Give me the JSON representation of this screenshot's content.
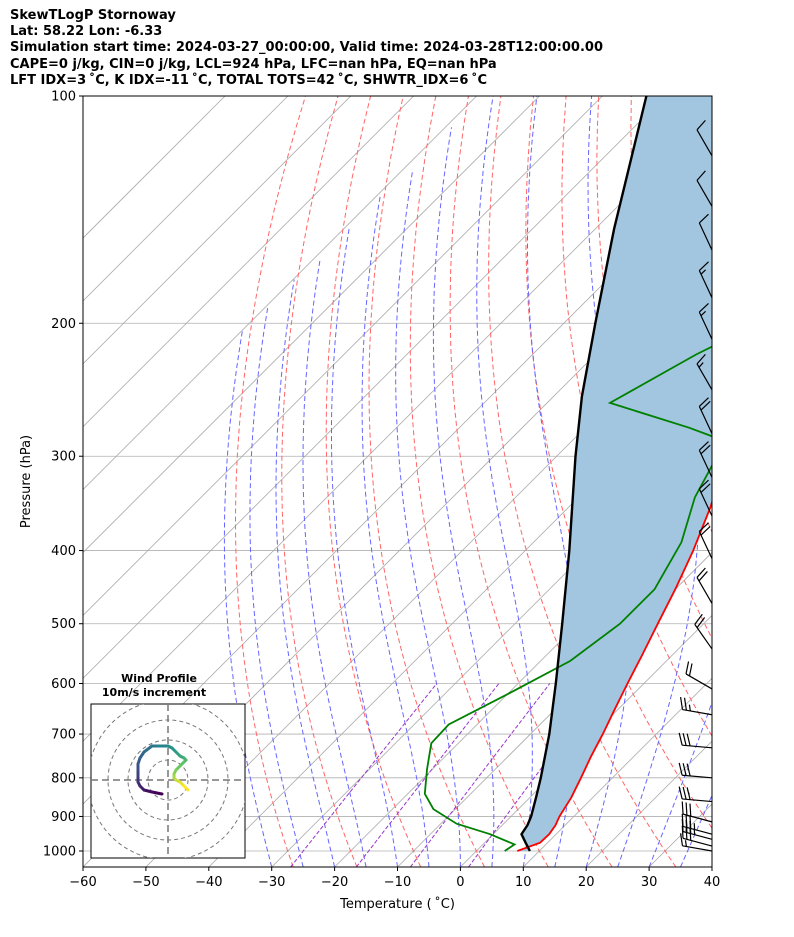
{
  "header": {
    "title": "SkewTLogP Stornoway",
    "location": "Lat: 58.22   Lon: -6.33",
    "times": "Simulation start time: 2024-03-27_00:00:00, Valid time: 2024-03-28T12:00:00.00",
    "params": "CAPE=0 j/kg, CIN=0 j/kg, LCL=924 hPa, LFC=nan hPa, EQ=nan hPa",
    "indices": "LFT IDX=3 ˚C, K IDX=-11 ˚C, TOTAL TOTS=42 ˚C, SHWTR_IDX=6 ˚C"
  },
  "chart_data": {
    "type": "skewt-logp",
    "xlabel": "Temperature ( ˚C)",
    "ylabel": "Pressure (hPa)",
    "xlim": [
      -60,
      40
    ],
    "ylim": [
      1050,
      100
    ],
    "y_scale": "log",
    "x_ticks": [
      "−60",
      "−50",
      "−40",
      "−30",
      "−20",
      "−10",
      "0",
      "10",
      "20",
      "30",
      "40"
    ],
    "y_ticks": [
      "100",
      "200",
      "300",
      "400",
      "500",
      "600",
      "700",
      "800",
      "900",
      "1000"
    ],
    "grid": true,
    "colors": {
      "temperature": "#ff0000",
      "dewpoint": "#008000",
      "parcel": "#000000",
      "shading": "#a2c6df",
      "dry_adiabats": "#ff6666",
      "moist_adiabats": "#6666ff",
      "mixing_ratio": "#9933cc",
      "isotherms": "#aaaaaa"
    },
    "temperature": [
      [
        1000,
        6.5
      ],
      [
        975,
        8.8
      ],
      [
        950,
        8.9
      ],
      [
        925,
        8.5
      ],
      [
        900,
        7.7
      ],
      [
        850,
        6.6
      ],
      [
        800,
        5.0
      ],
      [
        750,
        3.2
      ],
      [
        700,
        1.5
      ],
      [
        650,
        -0.5
      ],
      [
        600,
        -2.6
      ],
      [
        550,
        -4.8
      ],
      [
        500,
        -7.3
      ],
      [
        450,
        -10.0
      ],
      [
        400,
        -13.3
      ],
      [
        350,
        -17.5
      ],
      [
        300,
        -23.0
      ],
      [
        285,
        -21.0
      ],
      [
        270,
        -13.3
      ],
      [
        240,
        -11.0
      ],
      [
        210,
        -9.5
      ],
      [
        180,
        -8.3
      ],
      [
        160,
        -7.5
      ],
      [
        140,
        -8.2
      ],
      [
        125,
        -9.7
      ],
      [
        115,
        -9.0
      ],
      [
        105,
        -9.2
      ],
      [
        100,
        -8.0
      ]
    ],
    "dewpoint": [
      [
        1000,
        4.5
      ],
      [
        980,
        5.0
      ],
      [
        950,
        -0.5
      ],
      [
        920,
        -7.5
      ],
      [
        880,
        -13.5
      ],
      [
        840,
        -17.3
      ],
      [
        780,
        -20.8
      ],
      [
        720,
        -24.3
      ],
      [
        680,
        -24.5
      ],
      [
        620,
        -20.0
      ],
      [
        560,
        -15.3
      ],
      [
        500,
        -13.3
      ],
      [
        450,
        -13.3
      ],
      [
        390,
        -16.5
      ],
      [
        340,
        -21.5
      ],
      [
        300,
        -24.5
      ],
      [
        290,
        -23.3
      ],
      [
        275,
        -33.5
      ],
      [
        255,
        -50.0
      ],
      [
        220,
        -44.0
      ],
      [
        200,
        -39.0
      ],
      [
        185,
        -38.5
      ],
      [
        165,
        -37.0
      ],
      [
        150,
        -35.5
      ],
      [
        130,
        -30.0
      ],
      [
        115,
        -24.0
      ],
      [
        100,
        -17.5
      ]
    ],
    "parcel": [
      [
        1000,
        8.5
      ],
      [
        975,
        6.5
      ],
      [
        950,
        4.5
      ],
      [
        924,
        4.0
      ],
      [
        900,
        3.2
      ],
      [
        850,
        1.0
      ],
      [
        800,
        -1.4
      ],
      [
        700,
        -7.0
      ],
      [
        600,
        -14.0
      ],
      [
        500,
        -22.5
      ],
      [
        400,
        -33.0
      ],
      [
        300,
        -47.0
      ],
      [
        250,
        -55.5
      ],
      [
        200,
        -65.0
      ],
      [
        150,
        -77.0
      ],
      [
        100,
        -93.0
      ]
    ],
    "wind_barbs": [
      {
        "pressure": 1000,
        "speed_kt": 15,
        "dir": 280
      },
      {
        "pressure": 985,
        "speed_kt": 30,
        "dir": 285
      },
      {
        "pressure": 965,
        "speed_kt": 35,
        "dir": 285
      },
      {
        "pressure": 950,
        "speed_kt": 35,
        "dir": 285
      },
      {
        "pressure": 915,
        "speed_kt": 30,
        "dir": 285
      },
      {
        "pressure": 860,
        "speed_kt": 30,
        "dir": 275
      },
      {
        "pressure": 800,
        "speed_kt": 30,
        "dir": 275
      },
      {
        "pressure": 730,
        "speed_kt": 30,
        "dir": 275
      },
      {
        "pressure": 660,
        "speed_kt": 25,
        "dir": 280
      },
      {
        "pressure": 610,
        "speed_kt": 20,
        "dir": 300
      },
      {
        "pressure": 540,
        "speed_kt": 20,
        "dir": 325
      },
      {
        "pressure": 470,
        "speed_kt": 20,
        "dir": 330
      },
      {
        "pressure": 410,
        "speed_kt": 20,
        "dir": 335
      },
      {
        "pressure": 360,
        "speed_kt": 20,
        "dir": 335
      },
      {
        "pressure": 320,
        "speed_kt": 20,
        "dir": 335
      },
      {
        "pressure": 280,
        "speed_kt": 20,
        "dir": 335
      },
      {
        "pressure": 245,
        "speed_kt": 15,
        "dir": 330
      },
      {
        "pressure": 210,
        "speed_kt": 15,
        "dir": 335
      },
      {
        "pressure": 185,
        "speed_kt": 15,
        "dir": 335
      },
      {
        "pressure": 160,
        "speed_kt": 10,
        "dir": 335
      },
      {
        "pressure": 140,
        "speed_kt": 10,
        "dir": 330
      },
      {
        "pressure": 120,
        "speed_kt": 10,
        "dir": 330
      }
    ],
    "hodograph": {
      "title": "Wind Profile",
      "subtitle": "10m/s increment",
      "rings_ms": [
        10,
        20,
        30,
        40
      ],
      "u": [
        -3,
        -8,
        -12,
        -14,
        -15,
        -15,
        -15,
        -15,
        -14,
        -12,
        -8,
        -5,
        0,
        2,
        4,
        6,
        8,
        9,
        8,
        6,
        4,
        3,
        3,
        4,
        6,
        8,
        10
      ],
      "v": [
        -7,
        -6,
        -5,
        -3,
        -1,
        2,
        5,
        8,
        11,
        14,
        17,
        17,
        17,
        16,
        14,
        12,
        11,
        10,
        9,
        7,
        5,
        3,
        1,
        0,
        -1,
        -3,
        -5
      ]
    }
  }
}
